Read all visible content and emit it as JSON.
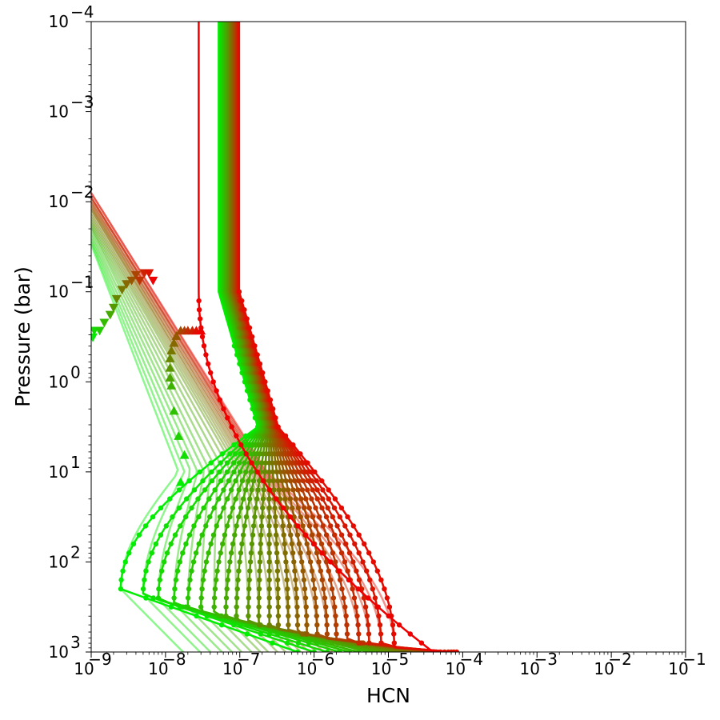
{
  "chart_data": {
    "type": "line",
    "title": "",
    "xlabel": "HCN",
    "ylabel": "Pressure (bar)",
    "xscale": "log",
    "yscale": "log",
    "xlim": [
      1e-09,
      0.1
    ],
    "ylim": [
      1000,
      0.0001
    ],
    "y_axis_inverted": true,
    "grid": false,
    "legend": "none",
    "x_tick_labels": [
      {
        "value": 1e-09,
        "base": "10",
        "exp": "−9"
      },
      {
        "value": 1e-08,
        "base": "10",
        "exp": "−8"
      },
      {
        "value": 1e-07,
        "base": "10",
        "exp": "−7"
      },
      {
        "value": 1e-06,
        "base": "10",
        "exp": "−6"
      },
      {
        "value": 1e-05,
        "base": "10",
        "exp": "−5"
      },
      {
        "value": 0.0001,
        "base": "10",
        "exp": "−4"
      },
      {
        "value": 0.001,
        "base": "10",
        "exp": "−3"
      },
      {
        "value": 0.01,
        "base": "10",
        "exp": "−2"
      },
      {
        "value": 0.1,
        "base": "10",
        "exp": "−1"
      }
    ],
    "y_tick_labels": [
      {
        "value": 0.0001,
        "base": "10",
        "exp": "−4"
      },
      {
        "value": 0.001,
        "base": "10",
        "exp": "−3"
      },
      {
        "value": 0.01,
        "base": "10",
        "exp": "−2"
      },
      {
        "value": 0.1,
        "base": "10",
        "exp": "−1"
      },
      {
        "value": 1,
        "base": "10",
        "exp": "0"
      },
      {
        "value": 10,
        "base": "10",
        "exp": "1"
      },
      {
        "value": 100,
        "base": "10",
        "exp": "2"
      },
      {
        "value": 1000,
        "base": "10",
        "exp": "3"
      }
    ],
    "color_start": "#00ee00",
    "color_end": "#ee0000",
    "faded_alpha": 0.45,
    "n_profiles": 25,
    "series_params": {
      "upper_x": [
        5.2e-08,
        5.4e-08,
        5.6e-08,
        5.8e-08,
        6e-08,
        6.2e-08,
        6.4e-08,
        6.6e-08,
        6.8e-08,
        7e-08,
        7.2e-08,
        7.4e-08,
        7.6e-08,
        7.8e-08,
        8e-08,
        8.2e-08,
        8.4e-08,
        8.6e-08,
        8.8e-08,
        9e-08,
        9.2e-08,
        9.4e-08,
        9.6e-08,
        9.8e-08,
        2.8e-08
      ],
      "bottom_x": [
        6e-07,
        1e-06,
        1.5e-06,
        2.2e-06,
        3e-06,
        4e-06,
        5.5e-06,
        7e-06,
        9e-06,
        1.1e-05,
        1.4e-05,
        1.7e-05,
        2e-05,
        2.4e-05,
        2.8e-05,
        3.3e-05,
        3.8e-05,
        4.4e-05,
        5e-05,
        5.7e-05,
        6.4e-05,
        7e-05,
        7.6e-05,
        8.3e-05,
        4e-05
      ],
      "dip_x": [
        2.5e-09,
        5e-09,
        8e-09,
        1.3e-08,
        2e-08,
        3e-08,
        4.5e-08,
        6.5e-08,
        9e-08,
        1.3e-07,
        1.8e-07,
        2.5e-07,
        3.3e-07,
        4.5e-07,
        6e-07,
        8e-07,
        1.1e-06,
        1.5e-06,
        2e-06,
        2.8e-06,
        4e-06,
        5.5e-06,
        8e-06,
        1.2e-05,
        null
      ],
      "dip_p": [
        200,
        230,
        260,
        290,
        320,
        350,
        380,
        410,
        440,
        470,
        500,
        530,
        560,
        590,
        620,
        650,
        680,
        710,
        740,
        770,
        800,
        830,
        860,
        890,
        null
      ],
      "dot_top_p": [
        0.35,
        0.34,
        0.33,
        0.32,
        0.31,
        0.3,
        0.28,
        0.27,
        0.26,
        0.25,
        0.24,
        0.22,
        0.21,
        0.2,
        0.19,
        0.18,
        0.17,
        0.16,
        0.14,
        0.13,
        0.12,
        0.11,
        0.1,
        0.085,
        0.1
      ],
      "faded_x_at_10bar": [
        1.5e-08,
        1.8e-08,
        2.2e-08,
        2.7e-08,
        3.3e-08,
        4e-08,
        5e-08,
        6.2e-08,
        7.6e-08,
        9e-08,
        1e-07,
        1.1e-07,
        1.2e-07,
        1.3e-07,
        1.4e-07,
        1.5e-07,
        1.6e-07,
        1.7e-07,
        1.8e-07,
        1.9e-07,
        2e-07,
        2.1e-07,
        2.2e-07,
        2.3e-07,
        null
      ],
      "faded_x_at_0p01bar": [
        1e-09,
        1e-09,
        1e-09,
        1e-09,
        1e-09,
        1e-09,
        1e-09,
        1e-09,
        1e-09,
        1e-09,
        1e-09,
        1e-09,
        1e-09,
        1e-09,
        1e-09,
        1e-09,
        1e-09,
        1e-09,
        1e-09,
        1e-09,
        1e-09,
        1e-09,
        1e-09,
        1e-09,
        null
      ],
      "faded_top_p": [
        0.03,
        0.028,
        0.026,
        0.024,
        0.022,
        0.02,
        0.019,
        0.018,
        0.017,
        0.016,
        0.015,
        0.014,
        0.013,
        0.012,
        0.012,
        0.011,
        0.011,
        0.01,
        0.01,
        0.009,
        0.009,
        0.009,
        0.008,
        0.008,
        null
      ]
    },
    "markers_up_triangle": [
      {
        "x": 1.6e-08,
        "p": 13
      },
      {
        "x": 1.8e-08,
        "p": 6.5
      },
      {
        "x": 1.5e-08,
        "p": 4.0
      },
      {
        "x": 1.3e-08,
        "p": 2.1
      },
      {
        "x": 1.2e-08,
        "p": 1.1
      },
      {
        "x": 1.15e-08,
        "p": 0.9
      },
      {
        "x": 1.15e-08,
        "p": 0.7
      },
      {
        "x": 1.15e-08,
        "p": 0.55
      },
      {
        "x": 1.2e-08,
        "p": 0.45
      },
      {
        "x": 1.3e-08,
        "p": 0.37
      },
      {
        "x": 1.4e-08,
        "p": 0.31
      },
      {
        "x": 1.6e-08,
        "p": 0.27
      },
      {
        "x": 1.8e-08,
        "p": 0.27
      },
      {
        "x": 2e-08,
        "p": 0.27
      },
      {
        "x": 2.3e-08,
        "p": 0.27
      },
      {
        "x": 2.6e-08,
        "p": 0.27
      },
      {
        "x": 3e-08,
        "p": 0.27
      }
    ],
    "markers_down_triangle": [
      {
        "x": 1.05e-09,
        "p": 0.32
      },
      {
        "x": 1.1e-09,
        "p": 0.27
      },
      {
        "x": 1.3e-09,
        "p": 0.27
      },
      {
        "x": 1.5e-09,
        "p": 0.22
      },
      {
        "x": 1.8e-09,
        "p": 0.18
      },
      {
        "x": 2e-09,
        "p": 0.15
      },
      {
        "x": 2.2e-09,
        "p": 0.12
      },
      {
        "x": 2.6e-09,
        "p": 0.095
      },
      {
        "x": 3e-09,
        "p": 0.082
      },
      {
        "x": 3.5e-09,
        "p": 0.075
      },
      {
        "x": 4e-09,
        "p": 0.065
      },
      {
        "x": 4.5e-09,
        "p": 0.075
      },
      {
        "x": 5.2e-09,
        "p": 0.062
      },
      {
        "x": 6e-09,
        "p": 0.062
      },
      {
        "x": 6.8e-09,
        "p": 0.075
      }
    ]
  }
}
